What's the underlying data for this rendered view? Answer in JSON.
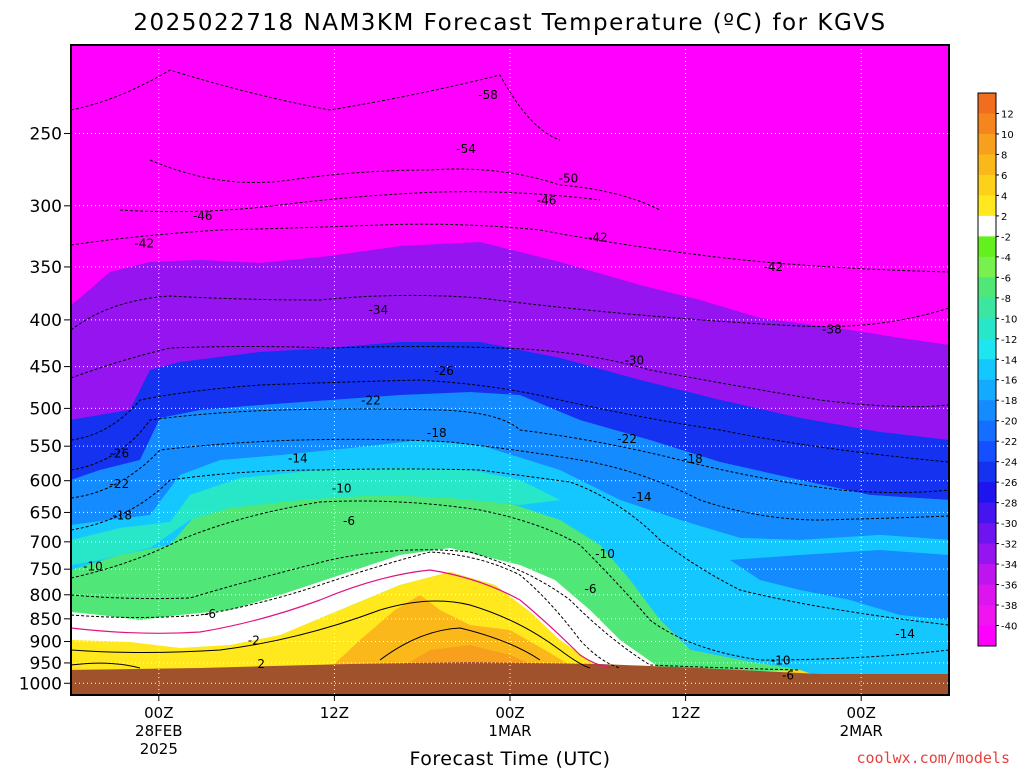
{
  "chart_data": {
    "type": "heatmap",
    "title": "2025022718 NAM3KM Forecast Temperature (ºC) for KGVS",
    "xlabel": "Forecast Time (UTC)",
    "ylabel": "",
    "y_axis": {
      "scale": "log",
      "direction": "pressure decreasing upward",
      "range": [
        1030,
        200
      ],
      "ticks": [
        250,
        300,
        350,
        400,
        450,
        500,
        550,
        600,
        650,
        700,
        750,
        800,
        850,
        900,
        950,
        1000
      ]
    },
    "x_axis": {
      "range_hours_from_init": [
        0,
        60
      ],
      "ticks": [
        {
          "hour": 6,
          "lines": [
            "00Z",
            "28FEB",
            "2025"
          ]
        },
        {
          "hour": 18,
          "lines": [
            "12Z"
          ]
        },
        {
          "hour": 30,
          "lines": [
            "00Z",
            "1MAR"
          ]
        },
        {
          "hour": 42,
          "lines": [
            "12Z"
          ]
        },
        {
          "hour": 54,
          "lines": [
            "00Z",
            "2MAR"
          ]
        }
      ]
    },
    "grid": true,
    "colorbar": {
      "placement": "right",
      "levels": [
        12,
        10,
        8,
        6,
        4,
        2,
        -2,
        -4,
        -6,
        -8,
        -10,
        -12,
        -14,
        -16,
        -18,
        -20,
        -22,
        -24,
        -26,
        -28,
        -30,
        -32,
        -34,
        -36,
        -38,
        -40
      ],
      "colors": [
        "#f06e1e",
        "#f5861e",
        "#f8a01e",
        "#fbb81a",
        "#fdd01a",
        "#ffe81e",
        "#ffffff",
        "#64f01e",
        "#78f050",
        "#50e678",
        "#3ce6a0",
        "#28e6c8",
        "#1ee6f0",
        "#14c8ff",
        "#14aaff",
        "#148cff",
        "#146eff",
        "#1450ff",
        "#1432f0",
        "#1e14f0",
        "#4614f0",
        "#6e14f0",
        "#9614f0",
        "#be14f0",
        "#dc14f0",
        "#f014f0",
        "#ff00ff"
      ]
    },
    "contour_labels": [
      {
        "value": "-58",
        "time": 28.5,
        "p": 227
      },
      {
        "value": "-54",
        "time": 27.0,
        "p": 260
      },
      {
        "value": "-50",
        "time": 34.0,
        "p": 280
      },
      {
        "value": "-46",
        "time": 9.0,
        "p": 308
      },
      {
        "value": "-46",
        "time": 32.5,
        "p": 296
      },
      {
        "value": "-42",
        "time": 5.0,
        "p": 330
      },
      {
        "value": "-42",
        "time": 36.0,
        "p": 325
      },
      {
        "value": "-42",
        "time": 48.0,
        "p": 350
      },
      {
        "value": "-38",
        "time": 52.0,
        "p": 410
      },
      {
        "value": "-34",
        "time": 21.0,
        "p": 390
      },
      {
        "value": "-30",
        "time": 38.5,
        "p": 443
      },
      {
        "value": "-26",
        "time": 25.5,
        "p": 455
      },
      {
        "value": "-26",
        "time": 3.3,
        "p": 560
      },
      {
        "value": "-22",
        "time": 20.5,
        "p": 490
      },
      {
        "value": "-22",
        "time": 38.0,
        "p": 540
      },
      {
        "value": "-22",
        "time": 3.3,
        "p": 605
      },
      {
        "value": "-18",
        "time": 25.0,
        "p": 532
      },
      {
        "value": "-18",
        "time": 42.5,
        "p": 568
      },
      {
        "value": "-18",
        "time": 3.5,
        "p": 655
      },
      {
        "value": "-14",
        "time": 15.5,
        "p": 567
      },
      {
        "value": "-14",
        "time": 39.0,
        "p": 625
      },
      {
        "value": "-14",
        "time": 57.0,
        "p": 883
      },
      {
        "value": "-10",
        "time": 18.5,
        "p": 612
      },
      {
        "value": "-10",
        "time": 36.5,
        "p": 722
      },
      {
        "value": "-10",
        "time": 1.5,
        "p": 745
      },
      {
        "value": "-10",
        "time": 48.5,
        "p": 944
      },
      {
        "value": "-6",
        "time": 19.0,
        "p": 664
      },
      {
        "value": "-6",
        "time": 35.5,
        "p": 788
      },
      {
        "value": "-6",
        "time": 9.5,
        "p": 840
      },
      {
        "value": "-6",
        "time": 49.0,
        "p": 980
      },
      {
        "value": "-2",
        "time": 12.5,
        "p": 898
      },
      {
        "value": "2",
        "time": 13.0,
        "p": 952
      }
    ]
  },
  "credit": "coolwx.com/models"
}
